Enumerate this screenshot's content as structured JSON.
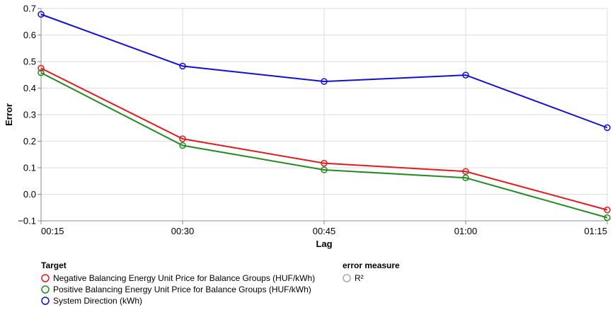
{
  "chart_data": {
    "type": "line",
    "title": "",
    "xlabel": "Lag",
    "ylabel": "Error",
    "categories": [
      "00:15",
      "00:30",
      "00:45",
      "01:00",
      "01:15"
    ],
    "ylim": [
      -0.1,
      0.7
    ],
    "yticks": [
      -0.1,
      0.0,
      0.1,
      0.2,
      0.3,
      0.4,
      0.5,
      0.6,
      0.7
    ],
    "ytick_labels": [
      "−0.1",
      "0.0",
      "0.1",
      "0.2",
      "0.3",
      "0.4",
      "0.5",
      "0.6",
      "0.7"
    ],
    "grid": true,
    "legend_placement": "bottom-left",
    "series": [
      {
        "name": "Negative Balancing Energy Unit Price for Balance Groups (HUF/kWh)",
        "color": "#e41a1c",
        "values": [
          0.475,
          0.209,
          0.117,
          0.086,
          -0.059
        ]
      },
      {
        "name": "Positive Balancing Energy Unit Price for Balance Groups (HUF/kWh)",
        "color": "#228b22",
        "values": [
          0.458,
          0.184,
          0.092,
          0.062,
          -0.088
        ]
      },
      {
        "name": "System Direction (kWh)",
        "color": "#1010d8",
        "values": [
          0.678,
          0.483,
          0.425,
          0.449,
          0.251
        ]
      }
    ],
    "legend": {
      "target_title": "Target",
      "measure_title": "error measure",
      "measures": [
        {
          "name": "R²",
          "color": "#aaaaaa"
        }
      ]
    }
  }
}
